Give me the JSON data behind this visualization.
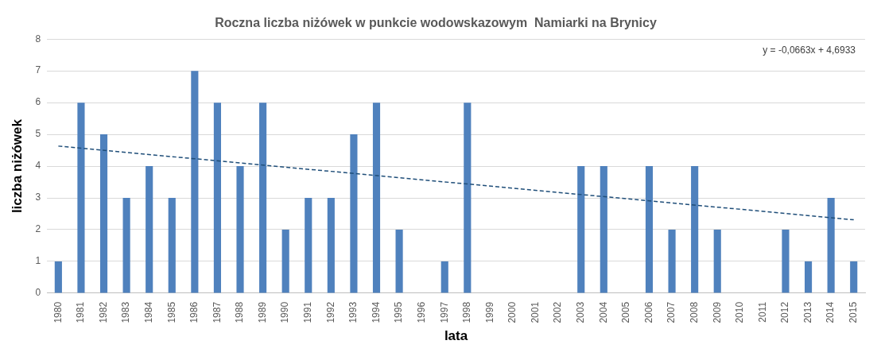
{
  "chart_data": {
    "type": "bar",
    "title": "Roczna liczba niżówek w punkcie wodowskazowym  Namiarki na Brynicy",
    "xlabel": "lata",
    "ylabel": "liczba niżówek",
    "categories": [
      "1980",
      "1981",
      "1982",
      "1983",
      "1984",
      "1985",
      "1986",
      "1987",
      "1988",
      "1989",
      "1990",
      "1991",
      "1992",
      "1993",
      "1994",
      "1995",
      "1996",
      "1997",
      "1998",
      "1999",
      "2000",
      "2001",
      "2002",
      "2003",
      "2004",
      "2005",
      "2006",
      "2007",
      "2008",
      "2009",
      "2010",
      "2011",
      "2012",
      "2013",
      "2014",
      "2015"
    ],
    "series": [
      {
        "color": "#4f81bd",
        "values": [
          1,
          6,
          5,
          3,
          4,
          3,
          7,
          6,
          4,
          6,
          2,
          3,
          3,
          5,
          6,
          2,
          0,
          1,
          6,
          0,
          0,
          0,
          0,
          4,
          4,
          0,
          4,
          2,
          4,
          2,
          0,
          0,
          2,
          1,
          3,
          1
        ]
      },
      {
        "type": "line",
        "color": "#1f4e79",
        "line_style": "dashed",
        "values": [
          4.63,
          null,
          null,
          null,
          null,
          null,
          null,
          null,
          null,
          null,
          null,
          null,
          null,
          null,
          null,
          null,
          null,
          null,
          null,
          null,
          null,
          null,
          null,
          null,
          null,
          null,
          null,
          null,
          null,
          null,
          null,
          null,
          null,
          null,
          null,
          2.31
        ]
      }
    ],
    "ylim": [
      0,
      8
    ],
    "yticks": [
      0,
      1,
      2,
      3,
      4,
      5,
      6,
      7,
      8
    ],
    "grid": "y",
    "legend": false,
    "annotations": [
      "y = -0,0663x + 4,6933"
    ]
  }
}
